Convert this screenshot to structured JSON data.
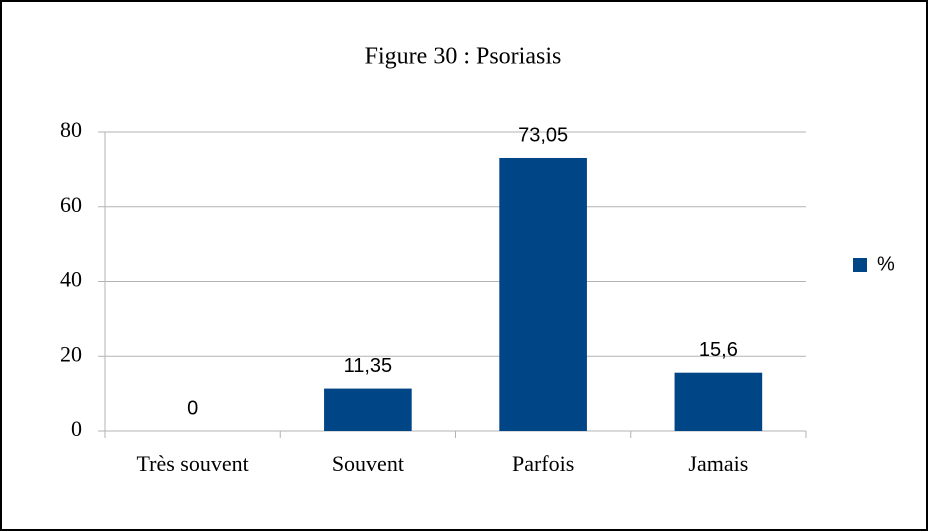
{
  "chart_data": {
    "type": "bar",
    "title": "Figure 30 : Psoriasis",
    "categories": [
      "Très souvent",
      "Souvent",
      "Parfois",
      "Jamais"
    ],
    "series": [
      {
        "name": "%",
        "color": "#004586",
        "values": [
          0,
          11.35,
          73.05,
          15.6
        ],
        "value_labels": [
          "0",
          "11,35",
          "73,05",
          "15,6"
        ]
      }
    ],
    "ylim": [
      0,
      80
    ],
    "yticks": [
      0,
      20,
      40,
      60,
      80
    ],
    "grid": true,
    "legend": "right"
  }
}
